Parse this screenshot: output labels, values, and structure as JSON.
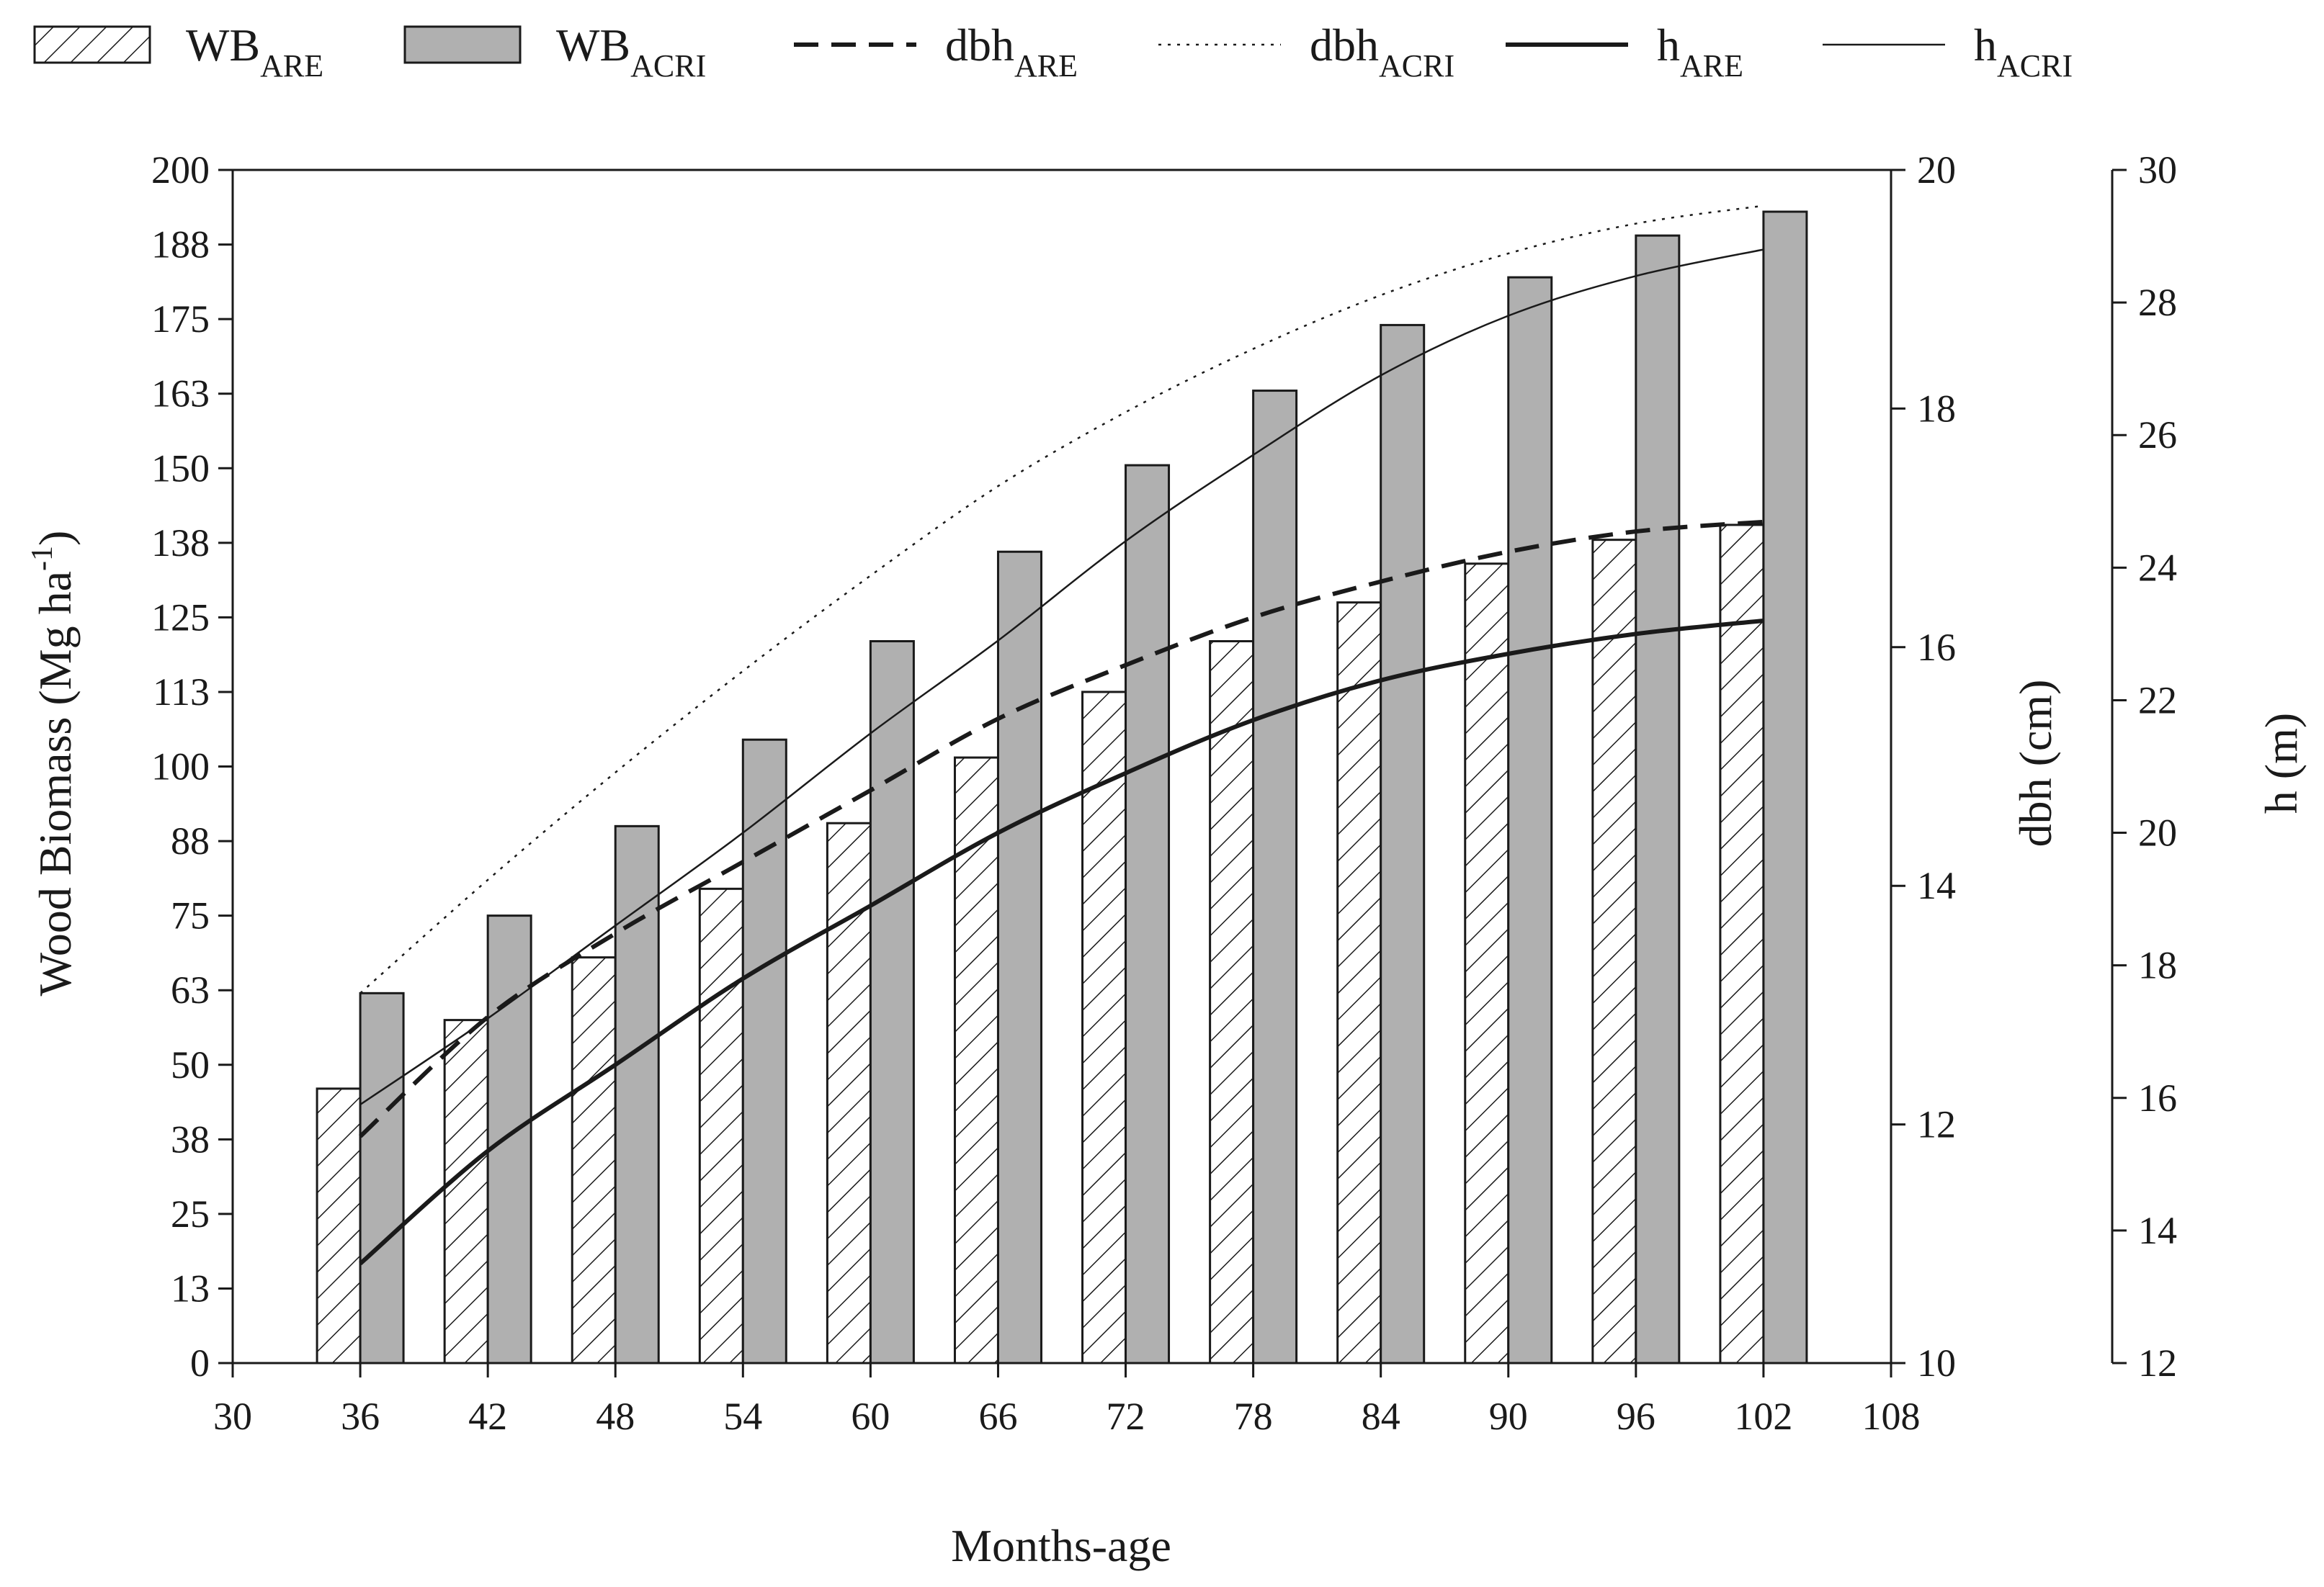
{
  "legend": [
    {
      "base": "WB",
      "sub": "ARE",
      "style": "hatched-bar"
    },
    {
      "base": "WB",
      "sub": "ACRI",
      "style": "gray-bar"
    },
    {
      "base": "dbh",
      "sub": "ARE",
      "style": "dashed-line"
    },
    {
      "base": "dbh",
      "sub": "ACRI",
      "style": "dotted-line"
    },
    {
      "base": "h",
      "sub": "ARE",
      "style": "thick-line"
    },
    {
      "base": "h",
      "sub": "ACRI",
      "style": "thin-line"
    }
  ],
  "chart_data": {
    "type": "bar",
    "xlabel": "Months-age",
    "ylabel_left": "Wood Biomass (Mg ha",
    "ylabel_left_sup": "-1",
    "ylabel_left_close": ")",
    "ylabel_right1": "dbh (cm)",
    "ylabel_right2": "h (m)",
    "x_ticks": [
      "30",
      "36",
      "42",
      "48",
      "54",
      "60",
      "66",
      "72",
      "78",
      "84",
      "90",
      "96",
      "102",
      "108"
    ],
    "x_tick_values": [
      30,
      36,
      42,
      48,
      54,
      60,
      66,
      72,
      78,
      84,
      90,
      96,
      102,
      108
    ],
    "xlim": [
      30,
      108
    ],
    "y_left_ticks": [
      "0",
      "13",
      "25",
      "38",
      "50",
      "63",
      "75",
      "88",
      "100",
      "113",
      "125",
      "138",
      "150",
      "163",
      "175",
      "188",
      "200"
    ],
    "y_left_lim": [
      0,
      200
    ],
    "y_right1_ticks": [
      "10",
      "12",
      "14",
      "16",
      "18",
      "20"
    ],
    "y_right1_lim": [
      10,
      20
    ],
    "y_right2_ticks": [
      "12",
      "14",
      "16",
      "18",
      "20",
      "22",
      "24",
      "26",
      "28",
      "30"
    ],
    "y_right2_lim": [
      12,
      30
    ],
    "categories": [
      36,
      42,
      48,
      54,
      60,
      66,
      72,
      78,
      84,
      90,
      96,
      102
    ],
    "bar_series": [
      {
        "name": "WB_ARE",
        "axis": "left",
        "pattern": "hatch",
        "values": [
          46,
          57.5,
          68,
          79.5,
          90.5,
          101.5,
          112.5,
          121,
          127.5,
          134,
          138,
          140.5
        ]
      },
      {
        "name": "WB_ACRI",
        "axis": "left",
        "color": "#b0b0b0",
        "values": [
          62,
          75,
          90,
          104.5,
          121,
          136,
          150.5,
          163,
          174,
          182,
          189,
          193
        ]
      }
    ],
    "line_series": [
      {
        "name": "dbh_ARE",
        "axis": "right1",
        "style": "dashed",
        "x": [
          36,
          42,
          48,
          54,
          60,
          66,
          72,
          78,
          84,
          90,
          96,
          102
        ],
        "values": [
          11.9,
          12.9,
          13.6,
          14.2,
          14.8,
          15.4,
          15.85,
          16.25,
          16.55,
          16.8,
          16.97,
          17.05
        ]
      },
      {
        "name": "dbh_ACRI",
        "axis": "right1",
        "style": "dotted",
        "x": [
          36,
          42,
          48,
          54,
          60,
          66,
          72,
          78,
          84,
          90,
          96,
          102
        ],
        "values": [
          13.1,
          14.05,
          14.95,
          15.8,
          16.6,
          17.35,
          17.97,
          18.5,
          18.95,
          19.3,
          19.55,
          19.7
        ]
      },
      {
        "name": "h_ARE",
        "axis": "right2",
        "style": "thick",
        "x": [
          36,
          42,
          48,
          54,
          60,
          66,
          72,
          78,
          84,
          90,
          96,
          102
        ],
        "values": [
          13.5,
          15.2,
          16.5,
          17.8,
          18.9,
          20.0,
          20.9,
          21.7,
          22.3,
          22.7,
          23.0,
          23.2
        ]
      },
      {
        "name": "h_ACRI",
        "axis": "right2",
        "style": "thin",
        "x": [
          36,
          42,
          48,
          54,
          60,
          66,
          72,
          78,
          84,
          90,
          96,
          102
        ],
        "values": [
          15.9,
          17.2,
          18.6,
          20.0,
          21.5,
          22.9,
          24.4,
          25.7,
          26.9,
          27.8,
          28.4,
          28.8
        ]
      }
    ]
  }
}
